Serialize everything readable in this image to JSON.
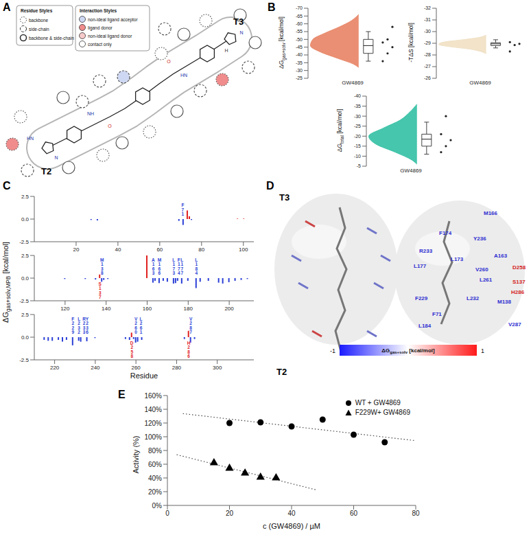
{
  "panels": [
    "A",
    "B",
    "C",
    "D",
    "E"
  ],
  "panel_A": {
    "residue_styles": {
      "title": "Residue Styles",
      "items": [
        {
          "label": "backbone",
          "style": "dotted"
        },
        {
          "label": "side-chain",
          "style": "dashed"
        },
        {
          "label": "backbone & side-chain",
          "style": "solid"
        }
      ]
    },
    "interaction_styles": {
      "title": "Interaction Styles",
      "items": [
        {
          "label": "non-ideal ligand acceptor",
          "color": "#cfd8f2"
        },
        {
          "label": "ligand donor",
          "color": "#f08c8c"
        },
        {
          "label": "non-ideal ligand donor",
          "color": "#f6c9c9"
        },
        {
          "label": "contact only",
          "color": "#ffffff"
        }
      ]
    },
    "ligand_labels": [
      "T2",
      "T3"
    ],
    "atom_labels": [
      "N",
      "HN",
      "NH",
      "O",
      "O",
      "HN",
      "N",
      "H"
    ]
  },
  "chart_data": [
    {
      "type": "violin",
      "category": "GW4869",
      "y_label": "ΔGgas+solv [kcal/mol]",
      "ylim": [
        -70,
        -25
      ],
      "yticks": [
        -70,
        -65,
        -60,
        -55,
        -50,
        -45,
        -40,
        -35,
        -30,
        -25
      ],
      "color": "#e9896b",
      "violin": {
        "y": [
          -66,
          -62,
          -58,
          -54,
          -50,
          -46,
          -42,
          -38,
          -34,
          -32
        ],
        "width": [
          0,
          0.15,
          0.4,
          0.7,
          0.95,
          1.0,
          0.8,
          0.45,
          0.1,
          0
        ]
      },
      "box": {
        "min": -55,
        "q1": -50,
        "median": -46,
        "q3": -41,
        "max": -36
      },
      "points": [
        -36,
        -41,
        -45,
        -48,
        -50,
        -58
      ]
    },
    {
      "type": "violin",
      "category": "GW4869",
      "y_label": "-TΔS [kcal/mol]",
      "ylim": [
        -32,
        -26
      ],
      "yticks": [
        -32,
        -31,
        -30,
        -29,
        -28,
        -27,
        -26
      ],
      "color": "#f1e2c6",
      "violin": {
        "y": [
          -29.7,
          -29.5,
          -29.3,
          -29.1,
          -28.9,
          -28.7,
          -28.5,
          -28.3,
          -28.1
        ],
        "width": [
          0,
          0.15,
          0.5,
          0.9,
          1.0,
          0.75,
          0.35,
          0.12,
          0
        ]
      },
      "box": {
        "min": -29.3,
        "q1": -29.05,
        "median": -28.95,
        "q3": -28.8,
        "max": -28.6
      },
      "points": [
        -28.3,
        -28.85,
        -28.95,
        -29.1
      ]
    },
    {
      "type": "violin",
      "category": "GW4869",
      "y_label": "ΔGtotal [kcal/mol]",
      "ylim": [
        -40,
        -5
      ],
      "yticks": [
        -40,
        -35,
        -30,
        -25,
        -20,
        -15,
        -10,
        -5
      ],
      "color": "#3cc3a8",
      "violin": {
        "y": [
          -36,
          -32,
          -28,
          -24,
          -20,
          -16,
          -12,
          -8,
          -6
        ],
        "width": [
          0,
          0.15,
          0.35,
          0.7,
          1.0,
          0.85,
          0.45,
          0.1,
          0
        ]
      },
      "box": {
        "min": -27,
        "q1": -21,
        "median": -18.5,
        "q3": -15,
        "max": -11
      },
      "points": [
        -12,
        -15,
        -18,
        -21,
        -30
      ]
    },
    {
      "type": "bar",
      "x": [
        27,
        30,
        69,
        71,
        73,
        74,
        75,
        97,
        100
      ],
      "values": [
        -0.1,
        -0.15,
        -0.2,
        -0.65,
        0.95,
        0.3,
        -0.1,
        0.05,
        0.05
      ],
      "colors": [
        "#2a3fd6",
        "#2a3fd6",
        "#2a3fd6",
        "#2a3fd6",
        "#e0201f",
        "#e0201f",
        "#2a3fd6",
        "#e0201f",
        "#e0201f"
      ],
      "xlim": [
        0,
        105
      ],
      "xticks": [
        20,
        40,
        60,
        80,
        100
      ],
      "ylim": [
        -2.5,
        2.5
      ],
      "yticks": [
        -2.5,
        {
          "value": 0,
          "label": "0.0"
        },
        2.5
      ],
      "annotations": [
        {
          "x": 71,
          "text": "F71",
          "color": "#2a3fd6"
        }
      ]
    },
    {
      "type": "bar",
      "y_label": "ΔGgas+solv,MPB [kcal/mol]",
      "x": [
        120,
        130,
        135,
        137,
        138,
        139,
        141,
        160,
        163,
        164,
        166,
        168,
        170,
        173,
        174,
        175,
        177,
        180,
        184,
        186,
        190,
        195,
        197,
        200,
        203,
        206,
        209
      ],
      "values": [
        -0.1,
        -0.1,
        -0.15,
        0.4,
        -0.4,
        -0.2,
        -0.1,
        2.5,
        -0.5,
        -0.3,
        -0.55,
        -0.3,
        -0.4,
        -0.6,
        -0.55,
        -0.3,
        -0.6,
        -0.3,
        -1.1,
        -0.4,
        -0.3,
        -0.5,
        -0.6,
        -0.45,
        -0.3,
        -0.2,
        -0.1
      ],
      "colors": [
        "#2a3fd6",
        "#2a3fd6",
        "#2a3fd6",
        "#e0201f",
        "#2a3fd6",
        "#2a3fd6",
        "#2a3fd6",
        "#e0201f",
        "#2a3fd6",
        "#2a3fd6",
        "#2a3fd6",
        "#2a3fd6",
        "#2a3fd6",
        "#2a3fd6",
        "#2a3fd6",
        "#2a3fd6",
        "#2a3fd6",
        "#2a3fd6",
        "#2a3fd6",
        "#2a3fd6",
        "#2a3fd6",
        "#2a3fd6",
        "#2a3fd6",
        "#2a3fd6",
        "#2a3fd6",
        "#2a3fd6",
        "#2a3fd6"
      ],
      "xlim": [
        105,
        212
      ],
      "xticks": [
        120,
        140,
        160,
        180,
        200
      ],
      "ylim": [
        -2.5,
        2.5
      ],
      "yticks": [
        -2.5,
        {
          "value": 0,
          "label": "0.0"
        },
        2.5
      ],
      "annotations": [
        {
          "x": 137,
          "text": "S137",
          "color": "#e0201f"
        },
        {
          "x": 138,
          "text": "M138",
          "color": "#2a3fd6"
        },
        {
          "x": 163,
          "text": "A163",
          "color": "#2a3fd6"
        },
        {
          "x": 166,
          "text": "M166",
          "color": "#2a3fd6"
        },
        {
          "x": 173,
          "text": "L173",
          "color": "#2a3fd6"
        },
        {
          "x": 174,
          "text": "F174",
          "color": "#2a3fd6"
        },
        {
          "x": 177,
          "text": "L177",
          "color": "#2a3fd6"
        },
        {
          "x": 184,
          "text": "L184",
          "color": "#2a3fd6"
        }
      ]
    },
    {
      "type": "bar",
      "x_label": "Residue",
      "x": [
        215,
        217,
        219,
        222,
        224,
        226,
        229,
        232,
        233,
        236,
        240,
        255,
        257,
        258,
        259,
        260,
        261,
        263,
        284,
        286,
        287,
        289
      ],
      "values": [
        -0.3,
        -0.4,
        -0.4,
        -0.3,
        -0.5,
        -0.3,
        -0.9,
        -0.4,
        -0.5,
        -0.45,
        -0.1,
        -0.2,
        -0.3,
        0.5,
        -0.2,
        -0.6,
        -0.5,
        -0.3,
        -0.2,
        0.7,
        -0.6,
        -0.2
      ],
      "colors": [
        "#2a3fd6",
        "#2a3fd6",
        "#2a3fd6",
        "#2a3fd6",
        "#2a3fd6",
        "#2a3fd6",
        "#2a3fd6",
        "#2a3fd6",
        "#2a3fd6",
        "#2a3fd6",
        "#2a3fd6",
        "#2a3fd6",
        "#2a3fd6",
        "#e0201f",
        "#2a3fd6",
        "#2a3fd6",
        "#2a3fd6",
        "#2a3fd6",
        "#2a3fd6",
        "#e0201f",
        "#2a3fd6",
        "#2a3fd6"
      ],
      "xlim": [
        210,
        318
      ],
      "xticks": [
        220,
        240,
        260,
        280,
        300
      ],
      "ylim": [
        -2.5,
        2.5
      ],
      "yticks": [
        -2.5,
        {
          "value": 0,
          "label": "0.0"
        },
        2.5
      ],
      "annotations": [
        {
          "x": 229,
          "text": "F229",
          "color": "#2a3fd6"
        },
        {
          "x": 232,
          "text": "L232",
          "color": "#2a3fd6"
        },
        {
          "x": 233,
          "text": "R233",
          "color": "#2a3fd6"
        },
        {
          "x": 236,
          "text": "Y236",
          "color": "#2a3fd6"
        },
        {
          "x": 258,
          "text": "D258",
          "color": "#e0201f"
        },
        {
          "x": 260,
          "text": "V260",
          "color": "#2a3fd6"
        },
        {
          "x": 261,
          "text": "L261",
          "color": "#2a3fd6"
        },
        {
          "x": 286,
          "text": "H286",
          "color": "#e0201f"
        },
        {
          "x": 287,
          "text": "V287",
          "color": "#2a3fd6"
        }
      ]
    },
    {
      "type": "scatter",
      "x_label": "c (GW4869) / µM",
      "y_label": "Activity (%)",
      "xlim": [
        0,
        80
      ],
      "xticks": [
        0,
        20,
        40,
        60,
        80
      ],
      "ylim": [
        0,
        160
      ],
      "yticks": [
        {
          "value": 0,
          "label": "0%"
        },
        {
          "value": 20,
          "label": "20%"
        },
        {
          "value": 40,
          "label": "40%"
        },
        {
          "value": 60,
          "label": "60%"
        },
        {
          "value": 80,
          "label": "80%"
        },
        {
          "value": 100,
          "label": "100%"
        },
        {
          "value": 120,
          "label": "120%"
        },
        {
          "value": 140,
          "label": "140%"
        },
        {
          "value": 160,
          "label": "160%"
        }
      ],
      "legend": "top-right",
      "series": [
        {
          "name": "WT + GW4869",
          "marker": "circle",
          "color": "#000000",
          "x": [
            20,
            30,
            40,
            50,
            60,
            70
          ],
          "values": [
            120,
            121,
            115,
            125,
            103,
            92
          ],
          "trendline": {
            "x": [
              5,
              80
            ],
            "line_style": "dotted"
          }
        },
        {
          "name": "F229W+ GW4869",
          "marker": "triangle",
          "color": "#000000",
          "x": [
            15,
            20,
            25,
            30,
            35
          ],
          "values": [
            62,
            54,
            47,
            41,
            40
          ],
          "trendline": {
            "x": [
              3,
              48
            ],
            "line_style": "dotted"
          }
        }
      ]
    }
  ],
  "panel_D": {
    "ligand_labels": [
      "T3",
      "T2"
    ],
    "residues": [
      {
        "text": "M166",
        "color": "#2b2bd0"
      },
      {
        "text": "F174",
        "color": "#2b2bd0"
      },
      {
        "text": "Y236",
        "color": "#2b2bd0"
      },
      {
        "text": "R233",
        "color": "#2b2bd0"
      },
      {
        "text": "L173",
        "color": "#2b2bd0"
      },
      {
        "text": "A163",
        "color": "#2b2bd0"
      },
      {
        "text": "D258",
        "color": "#d42020"
      },
      {
        "text": "L177",
        "color": "#2b2bd0"
      },
      {
        "text": "V260",
        "color": "#2b2bd0"
      },
      {
        "text": "L261",
        "color": "#2b2bd0"
      },
      {
        "text": "S137",
        "color": "#d42020"
      },
      {
        "text": "H286",
        "color": "#d42020"
      },
      {
        "text": "F229",
        "color": "#2b2bd0"
      },
      {
        "text": "L232",
        "color": "#2b2bd0"
      },
      {
        "text": "M138",
        "color": "#2b2bd0"
      },
      {
        "text": "F71",
        "color": "#2b2bd0"
      },
      {
        "text": "L184",
        "color": "#2b2bd0"
      },
      {
        "text": "V287",
        "color": "#2b2bd0"
      }
    ],
    "colorbar": {
      "label": "ΔGgas+solv [kcal/mol]",
      "range": [
        -1,
        1
      ],
      "ticks": [
        -1,
        1
      ],
      "colors": [
        "#1a1aff",
        "#ffffff",
        "#ff1a1a"
      ]
    }
  }
}
